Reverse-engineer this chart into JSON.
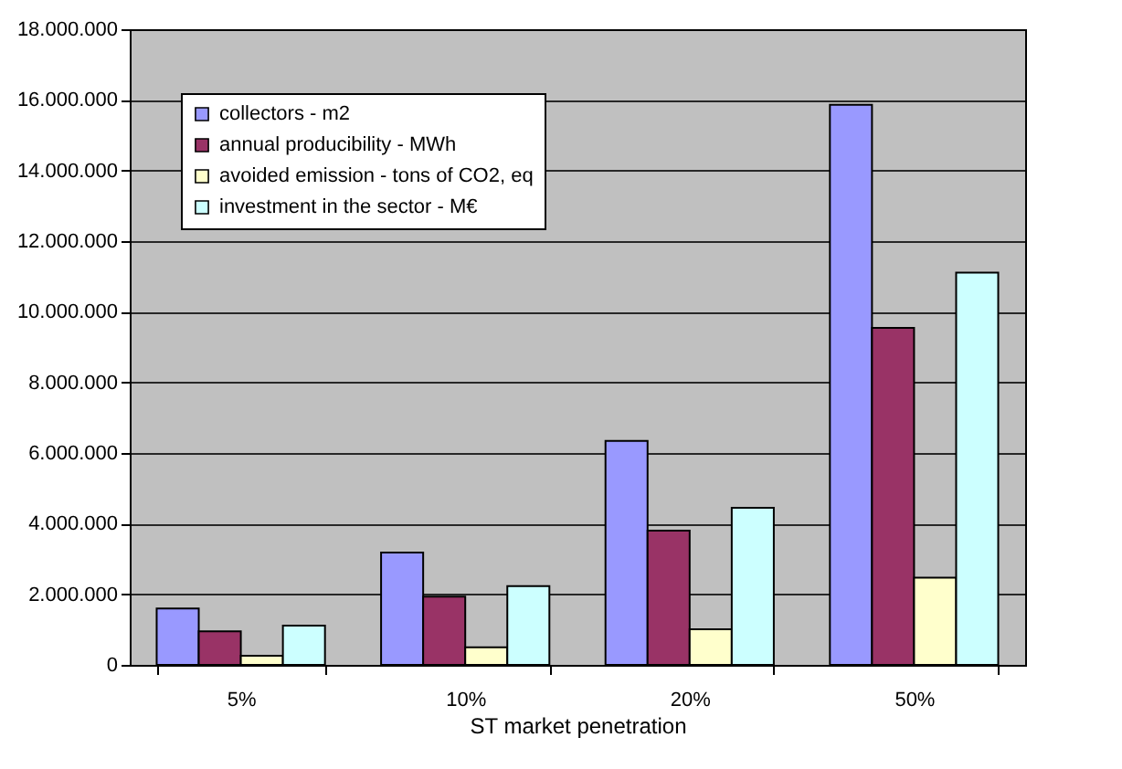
{
  "chart_data": {
    "type": "bar",
    "xlabel": "ST market penetration",
    "categories": [
      "5%",
      "10%",
      "20%",
      "50%"
    ],
    "series": [
      {
        "name": "collectors - m2",
        "color": "#9999ff",
        "values": [
          1600000,
          3180000,
          6340000,
          15860000
        ]
      },
      {
        "name": "annual producibility - MWh",
        "color": "#993366",
        "values": [
          950000,
          1930000,
          3800000,
          9540000
        ]
      },
      {
        "name": "avoided emission - tons of CO2, eq",
        "color": "#ffffcc",
        "values": [
          260000,
          500000,
          1010000,
          2470000
        ]
      },
      {
        "name": "investment in the sector - M€",
        "color": "#ccffff",
        "values": [
          1110000,
          2230000,
          4450000,
          11110000
        ]
      }
    ],
    "ylim": [
      0,
      18000000
    ],
    "yticks": [
      {
        "value": 0,
        "label": "0"
      },
      {
        "value": 2000000,
        "label": "2.000.000"
      },
      {
        "value": 4000000,
        "label": "4.000.000"
      },
      {
        "value": 6000000,
        "label": "6.000.000"
      },
      {
        "value": 8000000,
        "label": "8.000.000"
      },
      {
        "value": 10000000,
        "label": "10.000.000"
      },
      {
        "value": 12000000,
        "label": "12.000.000"
      },
      {
        "value": 14000000,
        "label": "14.000.000"
      },
      {
        "value": 16000000,
        "label": "16.000.000"
      },
      {
        "value": 18000000,
        "label": "18.000.000"
      }
    ],
    "grid": "y",
    "legend": "top left"
  }
}
